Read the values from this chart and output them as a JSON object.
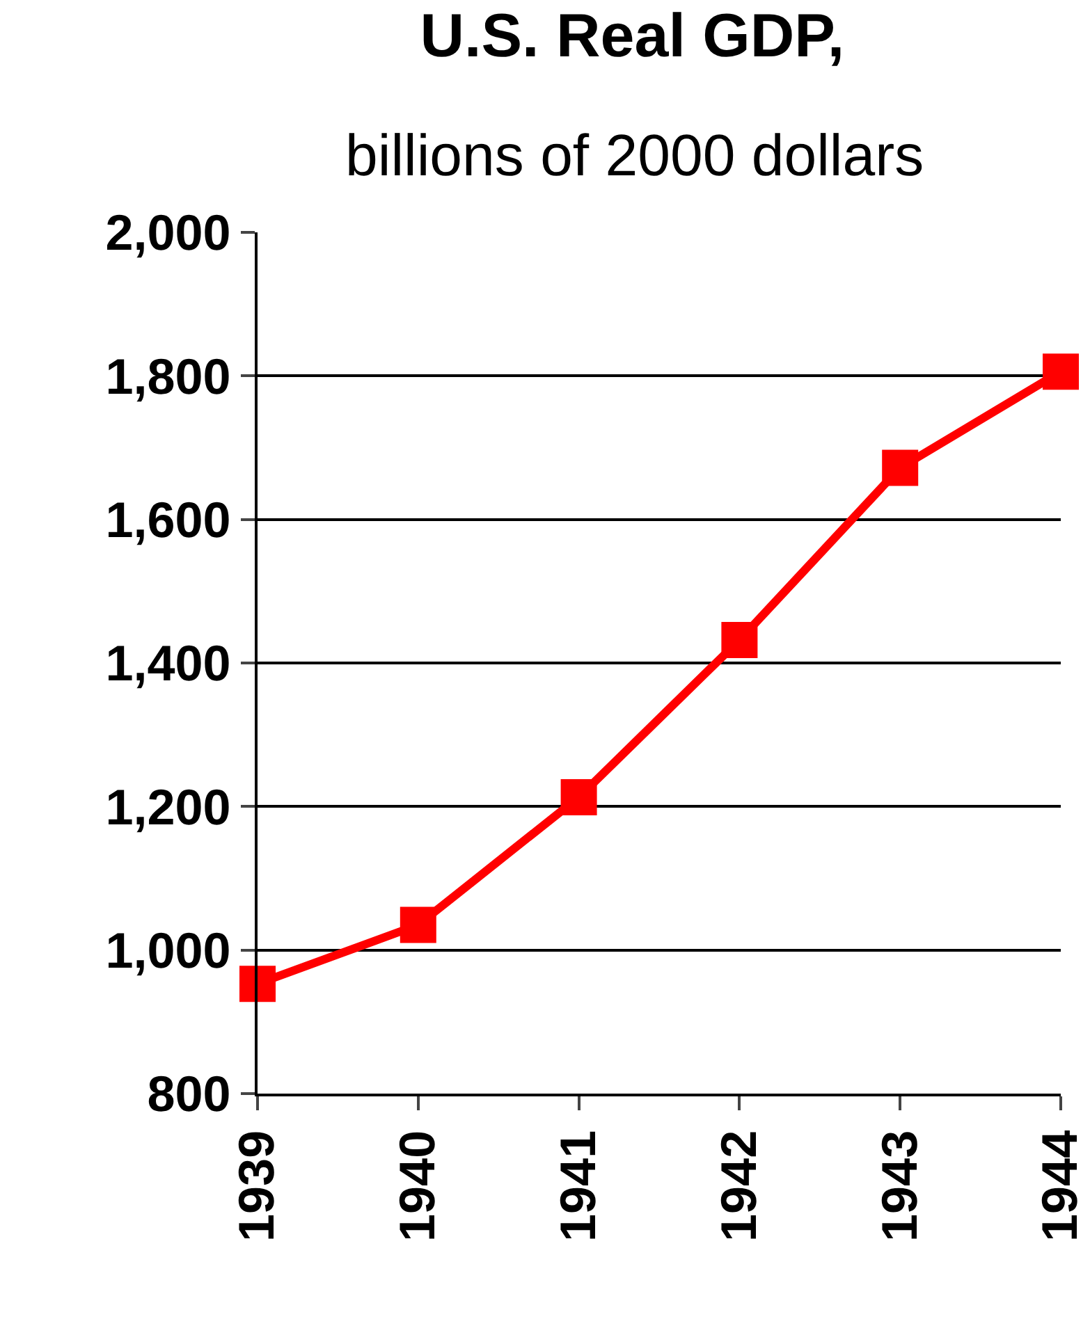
{
  "chart_data": {
    "type": "line",
    "title": "U.S. Real GDP,",
    "subtitle": "billions of 2000 dollars",
    "x": [
      1939,
      1940,
      1941,
      1942,
      1943,
      1944
    ],
    "series": [
      {
        "color": "#ff0000",
        "values": [
          953,
          1035,
          1213,
          1432,
          1672,
          1806
        ]
      }
    ],
    "xlim": [
      1939,
      1944
    ],
    "xticks": [
      1939,
      1940,
      1941,
      1942,
      1943,
      1944
    ],
    "ylim": [
      800,
      2000
    ],
    "yticks": [
      {
        "value": 800,
        "label": "800"
      },
      {
        "value": 1000,
        "label": "1,000"
      },
      {
        "value": 1200,
        "label": "1,200"
      },
      {
        "value": 1400,
        "label": "1,400"
      },
      {
        "value": 1600,
        "label": "1,600"
      },
      {
        "value": 1800,
        "label": "1,800"
      },
      {
        "value": 2000,
        "label": "2,000"
      }
    ],
    "grid": "y",
    "marker": "square",
    "line_style": "solid"
  }
}
